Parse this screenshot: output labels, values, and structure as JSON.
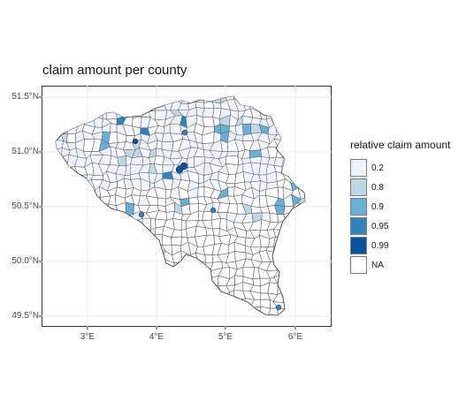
{
  "map": {
    "title": "claim amount per county",
    "y_ticks": [
      "51.5°N",
      "51.0°N",
      "50.5°N",
      "50.0°N",
      "49.5°N"
    ],
    "x_ticks": [
      "3°E",
      "4°E",
      "5°E",
      "6°E"
    ]
  },
  "legend": {
    "title": "relative claim amount",
    "items": [
      {
        "label": "0.2",
        "color": "#eff3ff"
      },
      {
        "label": "0.8",
        "color": "#bdd7e7"
      },
      {
        "label": "0.9",
        "color": "#6baed6"
      },
      {
        "label": "0.95",
        "color": "#3182bd"
      },
      {
        "label": "0.99",
        "color": "#08519c"
      },
      {
        "label": "NA",
        "color": "#ffffff"
      }
    ]
  }
}
